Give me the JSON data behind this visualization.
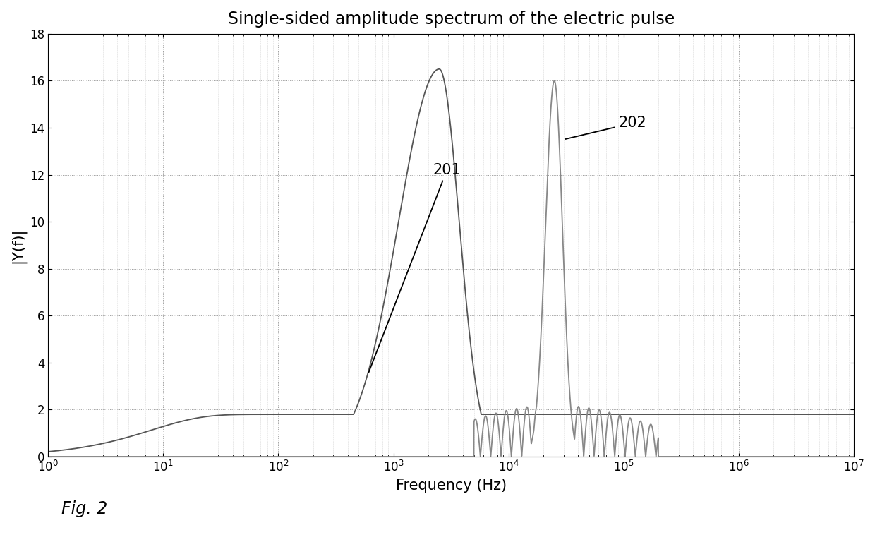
{
  "title": "Single-sided amplitude spectrum of the electric pulse",
  "xlabel": "Frequency (Hz)",
  "ylabel": "|Y(f)|",
  "xlim_log": [
    0,
    7
  ],
  "ylim": [
    0,
    18
  ],
  "yticks": [
    0,
    2,
    4,
    6,
    8,
    10,
    12,
    14,
    16,
    18
  ],
  "curve1_color": "#555555",
  "curve2_color": "#888888",
  "background_color": "#ffffff",
  "fig_label": "Fig. 2",
  "annotation1": "201",
  "annotation2": "202",
  "title_fontsize": 17,
  "axis_label_fontsize": 15,
  "tick_fontsize": 12,
  "curve1_peak_freq": 2500,
  "curve1_peak_amp": 16.5,
  "curve1_plateau": 1.8,
  "curve2_peak_freq": 25000,
  "curve2_peak_amp": 16.0
}
